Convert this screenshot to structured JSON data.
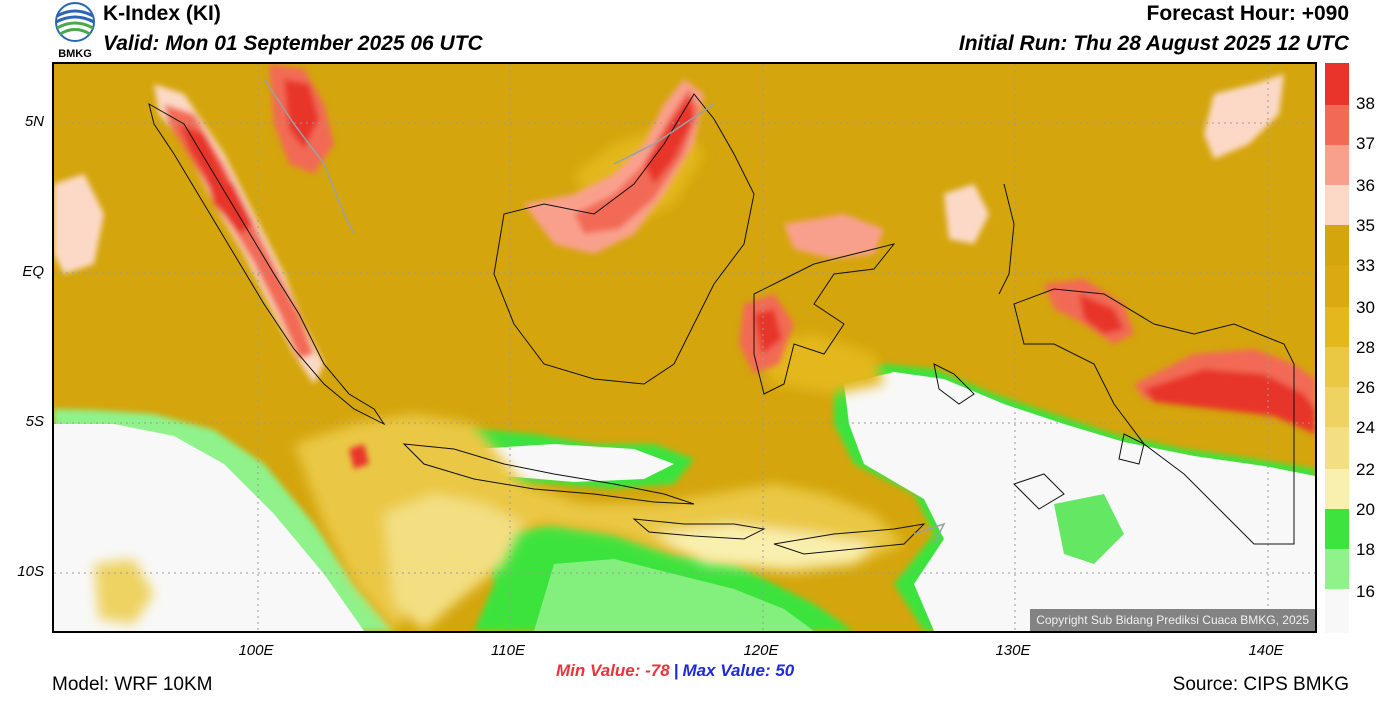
{
  "header": {
    "title": "K-Index (KI)",
    "valid": "Valid: Mon 01 September 2025 06 UTC",
    "forecast_hour": "Forecast Hour: +090",
    "initial_run": "Initial Run: Thu 28 August 2025 12 UTC",
    "logo_text": "BMKG"
  },
  "map": {
    "copyright": "Copyright Sub Bidang Prediksi Cuaca BMKG, 2025",
    "lat_labels": [
      "5N",
      "EQ",
      "5S",
      "10S"
    ],
    "lon_labels": [
      "100E",
      "110E",
      "120E",
      "130E",
      "140E"
    ]
  },
  "colorbar": {
    "levels": [
      "38",
      "37",
      "36",
      "35",
      "33",
      "30",
      "28",
      "26",
      "24",
      "22",
      "20",
      "18",
      "16"
    ],
    "colors": [
      "#e8342a",
      "#f26a55",
      "#f9a08d",
      "#fcd9c7",
      "#d4a50c",
      "#dba912",
      "#e4b71c",
      "#eac844",
      "#eed362",
      "#f3df82",
      "#f9efae",
      "#3ee33e",
      "#8ff28a",
      "#f8f8f8"
    ]
  },
  "footer": {
    "min_label": "Min Value: -78",
    "separator": "|",
    "max_label": "Max Value:  50",
    "model": "Model: WRF 10KM",
    "source": "Source: CIPS BMKG"
  }
}
